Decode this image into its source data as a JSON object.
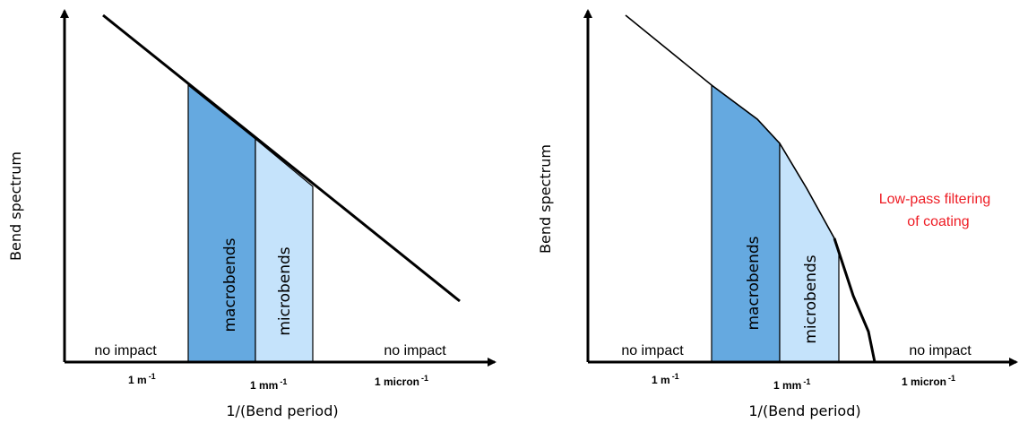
{
  "colors": {
    "macro_fill": "#65a9e0",
    "micro_fill": "#c5e3fb",
    "annotation": "#ee1c24",
    "line": "#000000"
  },
  "left_panel": {
    "y_axis_label": "Bend spectrum",
    "x_axis_label": "1/(Bend period)",
    "ticks": [
      {
        "base": "1 m",
        "exp": "-1"
      },
      {
        "base": "1 mm",
        "exp": "-1"
      },
      {
        "base": "1 micron",
        "exp": "-1"
      }
    ],
    "no_impact_left": "no impact",
    "no_impact_right": "no impact",
    "macro_label": "macrobends",
    "micro_label": "microbends"
  },
  "right_panel": {
    "y_axis_label": "Bend spectrum",
    "x_axis_label": "1/(Bend period)",
    "ticks": [
      {
        "base": "1 m",
        "exp": "-1"
      },
      {
        "base": "1 mm",
        "exp": "-1"
      },
      {
        "base": "1 micron",
        "exp": "-1"
      }
    ],
    "no_impact_left": "no impact",
    "no_impact_right": "no impact",
    "macro_label": "macrobends",
    "micro_label": "microbends",
    "annotation_line1": "Low-pass filtering",
    "annotation_line2": "of coating"
  }
}
